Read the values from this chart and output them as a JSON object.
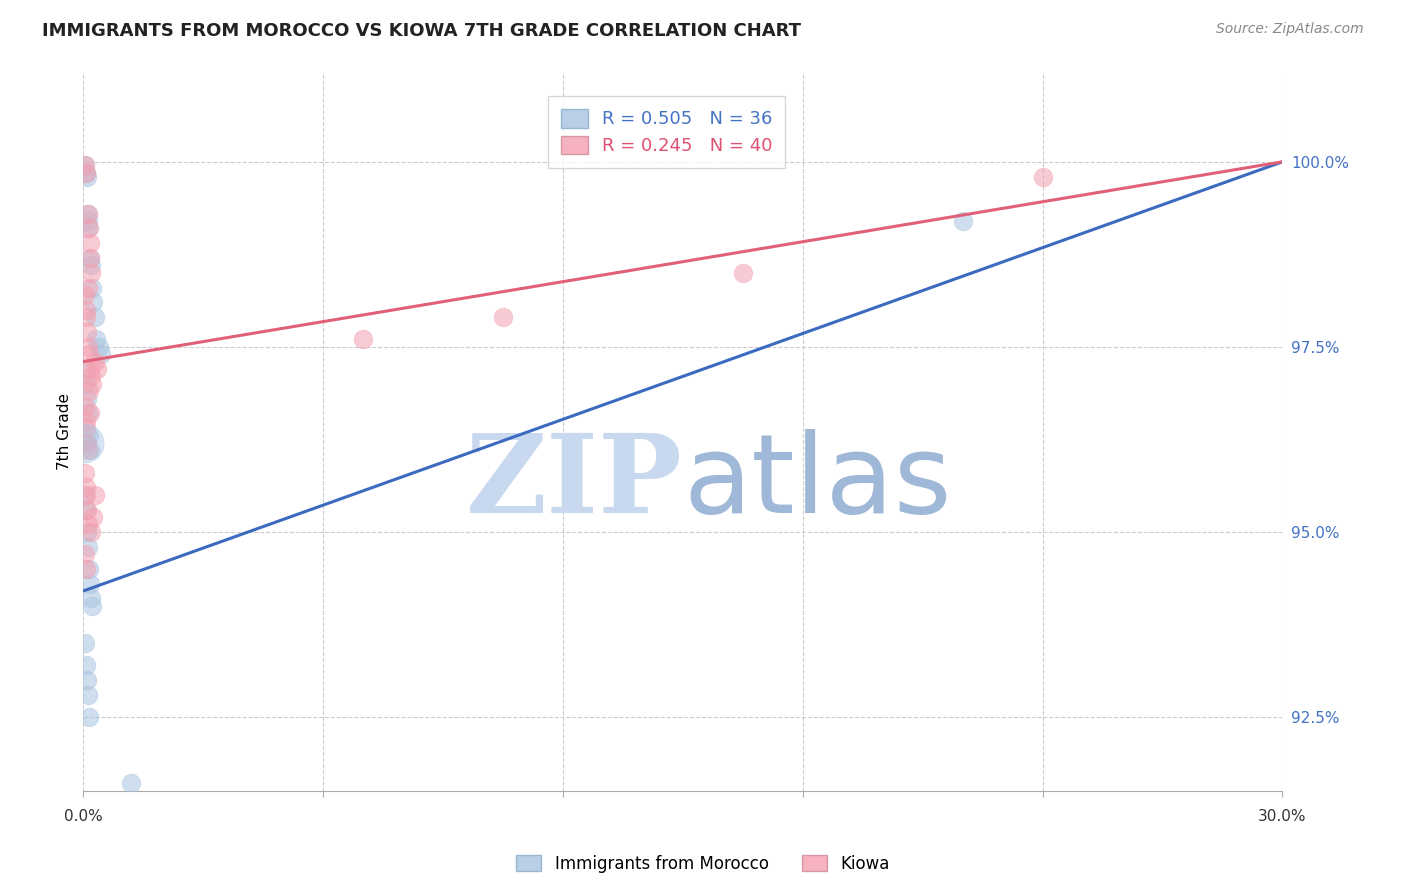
{
  "title": "IMMIGRANTS FROM MOROCCO VS KIOWA 7TH GRADE CORRELATION CHART",
  "source": "Source: ZipAtlas.com",
  "ylabel": "7th Grade",
  "ytick_values": [
    92.5,
    95.0,
    97.5,
    100.0
  ],
  "xlim": [
    0.0,
    30.0
  ],
  "ylim": [
    91.5,
    101.2
  ],
  "legend1_label": "R = 0.505   N = 36",
  "legend2_label": "R = 0.245   N = 40",
  "blue_color": "#a8c4e0",
  "pink_color": "#f4a0b0",
  "blue_line_color": "#3b6abf",
  "pink_line_color": "#e0607a",
  "blue_scatter": [
    [
      0.05,
      99.95
    ],
    [
      0.07,
      99.85
    ],
    [
      0.09,
      99.8
    ],
    [
      0.12,
      99.3
    ],
    [
      0.13,
      99.2
    ],
    [
      0.13,
      99.1
    ],
    [
      0.18,
      98.7
    ],
    [
      0.19,
      98.6
    ],
    [
      0.22,
      98.3
    ],
    [
      0.25,
      98.1
    ],
    [
      0.3,
      97.9
    ],
    [
      0.32,
      97.6
    ],
    [
      0.4,
      97.5
    ],
    [
      0.45,
      97.4
    ],
    [
      0.05,
      97.2
    ],
    [
      0.08,
      97.0
    ],
    [
      0.1,
      96.8
    ],
    [
      0.12,
      96.6
    ],
    [
      0.15,
      96.3
    ],
    [
      0.18,
      96.1
    ],
    [
      0.05,
      95.5
    ],
    [
      0.07,
      95.3
    ],
    [
      0.1,
      95.0
    ],
    [
      0.12,
      94.8
    ],
    [
      0.15,
      94.5
    ],
    [
      0.18,
      94.3
    ],
    [
      0.2,
      94.1
    ],
    [
      0.22,
      94.0
    ],
    [
      0.05,
      93.5
    ],
    [
      0.08,
      93.2
    ],
    [
      0.1,
      93.0
    ],
    [
      0.12,
      92.8
    ],
    [
      0.15,
      92.5
    ],
    [
      22.0,
      99.2
    ],
    [
      1.2,
      91.6
    ],
    [
      0.05,
      96.2
    ]
  ],
  "pink_scatter": [
    [
      0.05,
      99.95
    ],
    [
      0.08,
      99.85
    ],
    [
      0.12,
      99.3
    ],
    [
      0.15,
      99.1
    ],
    [
      0.16,
      98.9
    ],
    [
      0.18,
      98.7
    ],
    [
      0.2,
      98.5
    ],
    [
      0.05,
      98.2
    ],
    [
      0.07,
      98.0
    ],
    [
      0.08,
      97.9
    ],
    [
      0.1,
      97.7
    ],
    [
      0.12,
      97.5
    ],
    [
      0.14,
      97.4
    ],
    [
      0.18,
      97.2
    ],
    [
      0.2,
      97.1
    ],
    [
      0.22,
      97.0
    ],
    [
      0.05,
      96.7
    ],
    [
      0.07,
      96.5
    ],
    [
      0.08,
      96.4
    ],
    [
      0.1,
      96.2
    ],
    [
      0.12,
      96.1
    ],
    [
      0.05,
      95.8
    ],
    [
      0.07,
      95.6
    ],
    [
      0.08,
      95.5
    ],
    [
      0.1,
      95.3
    ],
    [
      0.12,
      95.1
    ],
    [
      0.05,
      94.7
    ],
    [
      0.08,
      94.5
    ],
    [
      0.3,
      97.3
    ],
    [
      0.35,
      97.2
    ],
    [
      7.0,
      97.6
    ],
    [
      10.5,
      97.9
    ],
    [
      16.5,
      98.5
    ],
    [
      24.0,
      99.8
    ],
    [
      0.2,
      95.0
    ],
    [
      0.25,
      95.2
    ],
    [
      0.3,
      95.5
    ],
    [
      0.12,
      98.3
    ],
    [
      0.15,
      96.9
    ],
    [
      0.18,
      96.6
    ]
  ],
  "blue_line_pts": [
    [
      0,
      94.2
    ],
    [
      30,
      100.0
    ]
  ],
  "pink_line_pts": [
    [
      0,
      97.3
    ],
    [
      30,
      100.0
    ]
  ],
  "blue_large_circle": [
    0.03,
    96.2
  ],
  "blue_large_size": 800,
  "xtick_positions": [
    0,
    6,
    12,
    18,
    24,
    30
  ],
  "watermark_zip_color": "#c8d8ef",
  "watermark_atlas_color": "#a0b8d8"
}
